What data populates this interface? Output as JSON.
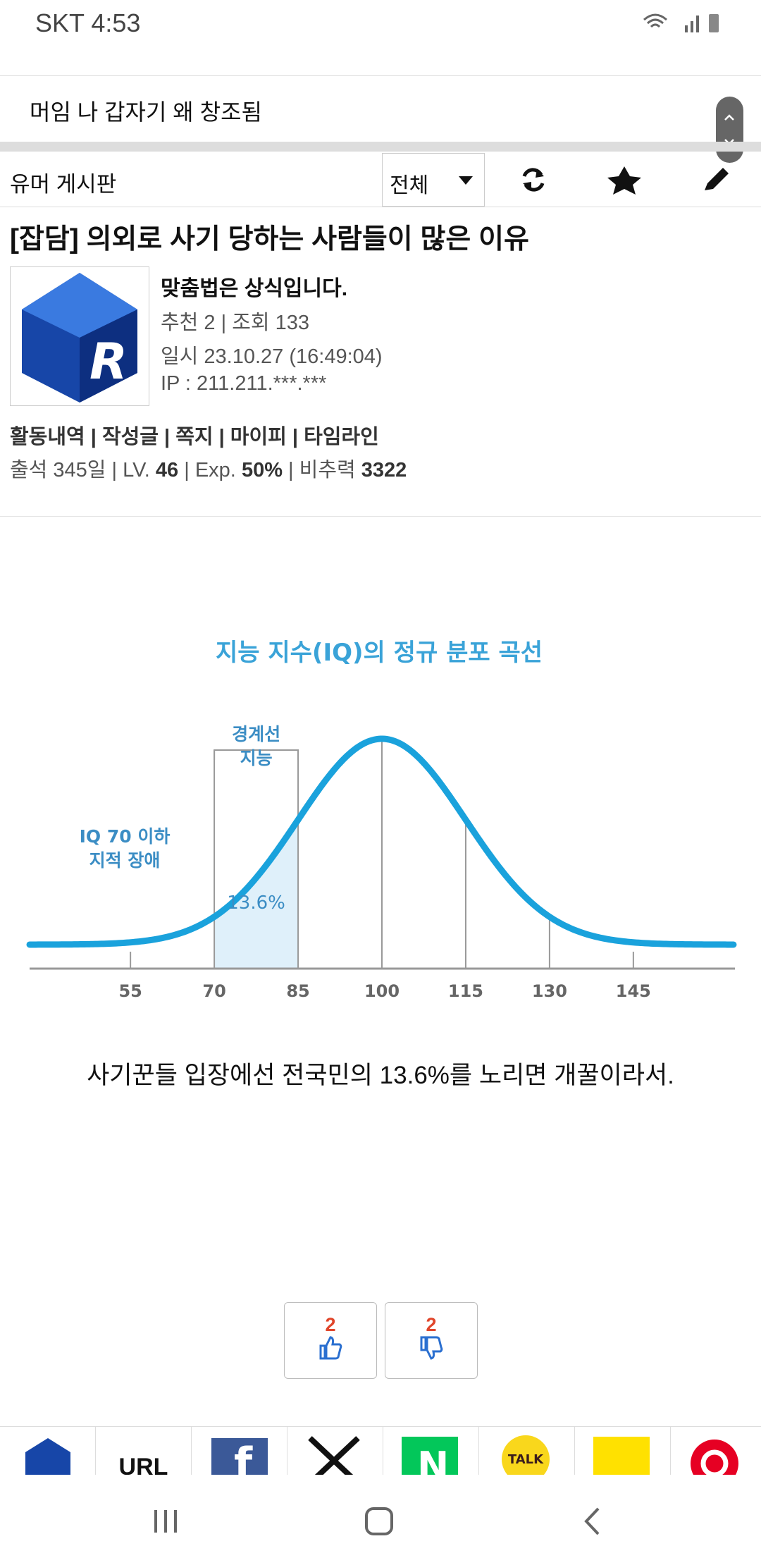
{
  "status": {
    "carrier_time": "SKT 4:53"
  },
  "prev_post": "머임 나 갑자기 왜 창조됨",
  "board": {
    "name": "유머 게시판",
    "filter": "전체"
  },
  "post": {
    "title": "[잡담] 의외로 사기 당하는 사람들이 많은 이유",
    "author": "맞춤법은 상식입니다.",
    "counts": "추천 2 | 조회 133",
    "date": "일시 23.10.27 (16:49:04)",
    "ip": "IP : 211.211.***.***",
    "links": "활동내역 | 작성글 | 쪽지 | 마이피 | 타임라인",
    "stats": [
      "출석 345일 | ",
      "LV.",
      "46",
      "| Exp.",
      "50%",
      "| 비추력",
      "3322"
    ],
    "caption": "사기꾼들 입장에선 전국민의 13.6%를 노리면 개꿀이라서."
  },
  "figure": {
    "title": "지능 지수(IQ)의 정규 분포 곡선",
    "bracket_label": [
      "경계선",
      "지능"
    ],
    "left_label": [
      "IQ 70 이하",
      "지적 장애"
    ],
    "shaded_label": "13.6%",
    "ticks": [
      55,
      70,
      85,
      100,
      115,
      130,
      145
    ]
  },
  "votes": {
    "up": 2,
    "down": 2
  },
  "share": {
    "url": "URL",
    "kakao": "TALK"
  }
}
